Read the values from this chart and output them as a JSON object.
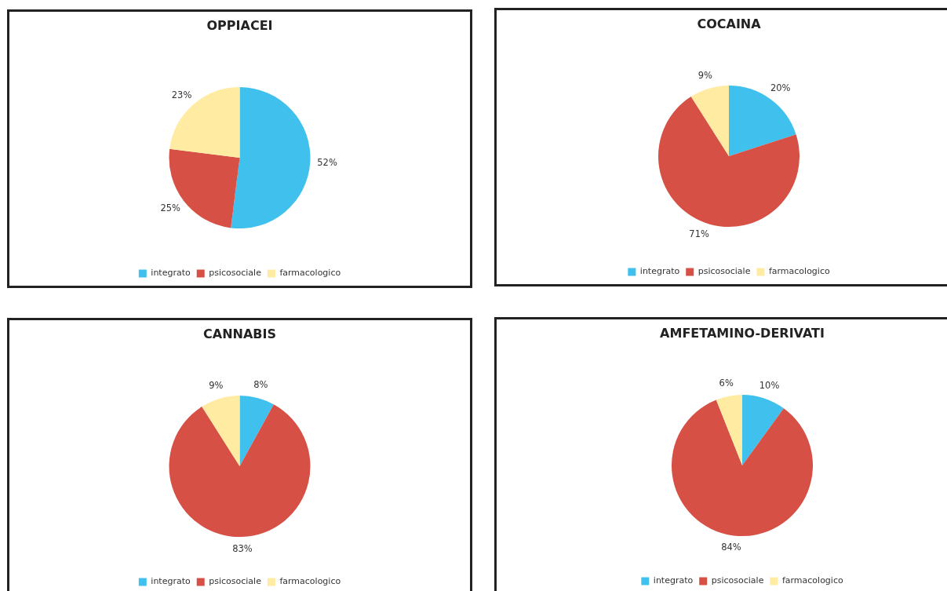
{
  "chart_data": [
    {
      "type": "pie",
      "title": "OPPIACEI",
      "categories": [
        "integrato",
        "psicosociale",
        "farmacologico"
      ],
      "values": [
        52,
        25,
        23
      ],
      "colors": [
        "#40c0ed",
        "#d65045",
        "#ffeba2"
      ],
      "value_labels": [
        "52%",
        "25%",
        "23%"
      ],
      "legend": "bottom"
    },
    {
      "type": "pie",
      "title": "COCAINA",
      "categories": [
        "integrato",
        "psicosociale",
        "farmacologico"
      ],
      "values": [
        20,
        71,
        9
      ],
      "colors": [
        "#40c0ed",
        "#d65045",
        "#ffeba2"
      ],
      "value_labels": [
        "20%",
        "71%",
        "9%"
      ],
      "legend": "bottom"
    },
    {
      "type": "pie",
      "title": "CANNABIS",
      "categories": [
        "integrato",
        "psicosociale",
        "farmacologico"
      ],
      "values": [
        8,
        83,
        9
      ],
      "colors": [
        "#40c0ed",
        "#d65045",
        "#ffeba2"
      ],
      "value_labels": [
        "8%",
        "83%",
        "9%"
      ],
      "legend": "bottom"
    },
    {
      "type": "pie",
      "title": "AMFETAMINO-DERIVATI",
      "categories": [
        "integrato",
        "psicosociale",
        "farmacologico"
      ],
      "values": [
        10,
        84,
        6
      ],
      "colors": [
        "#40c0ed",
        "#d65045",
        "#ffeba2"
      ],
      "value_labels": [
        "10%",
        "84%",
        "6%"
      ],
      "legend": "bottom"
    }
  ]
}
